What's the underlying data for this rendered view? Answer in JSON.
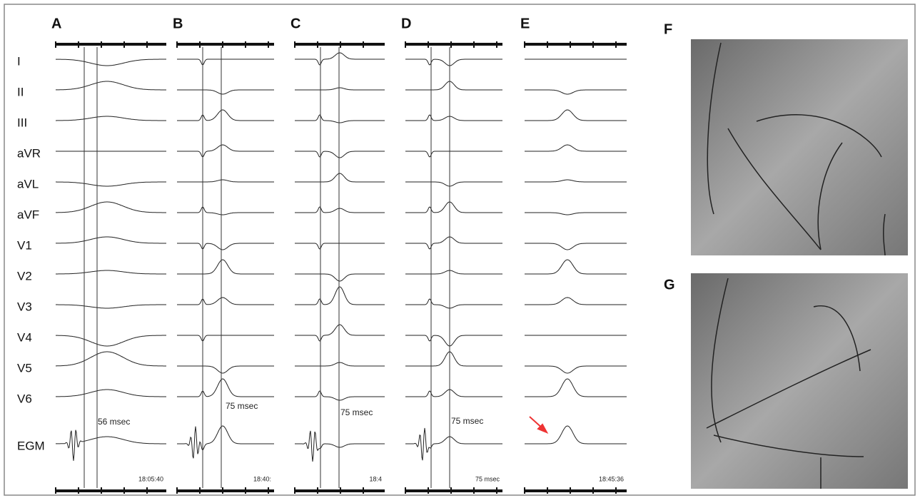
{
  "panels": [
    {
      "label": "A",
      "annotation": "56 msec",
      "time": "18:05:40"
    },
    {
      "label": "B",
      "annotation": "75 msec",
      "time": "18:40:"
    },
    {
      "label": "C",
      "annotation": "75 msec",
      "time": "18:4"
    },
    {
      "label": "D",
      "annotation": "75 msec",
      "time": "75 msec"
    },
    {
      "label": "E",
      "time": "18:45:36"
    }
  ],
  "leads": [
    "I",
    "II",
    "III",
    "aVR",
    "aVL",
    "aVF",
    "V1",
    "V2",
    "V3",
    "V4",
    "V5",
    "V6",
    "EGM"
  ],
  "images": [
    {
      "label": "F"
    },
    {
      "label": "G"
    }
  ]
}
